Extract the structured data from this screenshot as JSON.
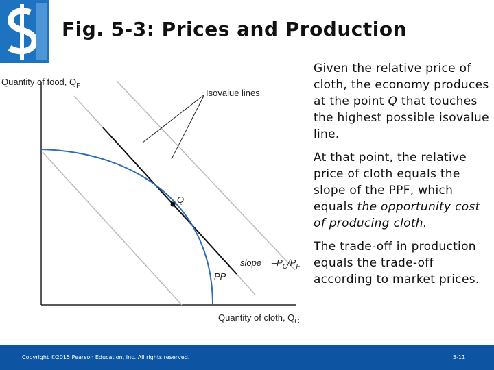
{
  "header": {
    "title": "Fig. 5-3:  Prices and Production"
  },
  "diagram": {
    "y_axis_label": {
      "text": "Quantity of food, Q",
      "subscript": "F"
    },
    "x_axis_label": {
      "text": "Quantity of cloth, Q",
      "subscript": "C"
    },
    "callout": "Isovalue lines",
    "point_label": "Q",
    "slope_label": {
      "parts": [
        "slope = –P",
        "C",
        "/P",
        "F"
      ]
    },
    "curve_label": "PP"
  },
  "text": {
    "paragraphs": [
      {
        "text": "Given the relative price of cloth, the economy produces at the point ",
        "emphasis": "Q",
        "after": " that touches the highest possible isovalue line."
      },
      {
        "text": "At that point, the relative price of cloth equals the slope of the PPF, which equals ",
        "emphasis": "the opportunity cost of producing cloth.",
        "after": ""
      },
      {
        "text": "The trade-off in production equals the trade-off according to market prices.",
        "emphasis": "",
        "after": ""
      }
    ]
  },
  "footer": {
    "copyright": "Copyright ©2015 Pearson Education, Inc. All rights reserved.",
    "page": "5-11"
  }
}
